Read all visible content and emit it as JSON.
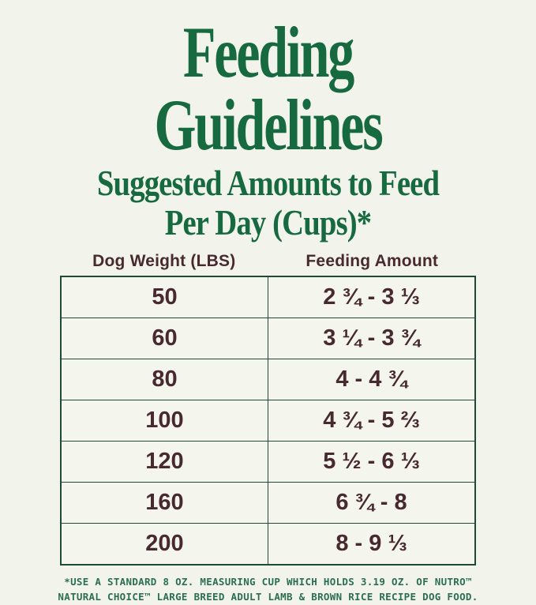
{
  "title": "Feeding Guidelines",
  "subtitle_line1": "Suggested Amounts to Feed",
  "subtitle_line2": "Per Day (Cups)*",
  "table": {
    "col1_header": "Dog Weight (LBS)",
    "col2_header": "Feeding Amount",
    "rows": [
      {
        "weight": "50",
        "amount": "2 ¾ - 3 ⅓"
      },
      {
        "weight": "60",
        "amount": "3 ¼ - 3 ¾"
      },
      {
        "weight": "80",
        "amount": "4 - 4 ¾"
      },
      {
        "weight": "100",
        "amount": "4 ¾ - 5 ⅔"
      },
      {
        "weight": "120",
        "amount": "5 ½ - 6 ⅓"
      },
      {
        "weight": "160",
        "amount": "6 ¾ - 8"
      },
      {
        "weight": "200",
        "amount": "8 - 9 ⅓"
      }
    ]
  },
  "footnote_line1": "*USE A STANDARD 8 OZ. MEASURING CUP WHICH HOLDS 3.19 OZ. OF NUTRO™",
  "footnote_line2": "NATURAL CHOICE™ LARGE BREED ADULT LAMB & BROWN RICE RECIPE DOG FOOD.",
  "colors": {
    "background": "#f2f4eb",
    "title_green": "#176a40",
    "text_brown": "#48292f",
    "border_green": "#1f4a36",
    "footnote_green": "#2c6e50"
  },
  "chart_data": {
    "type": "table",
    "title": "Feeding Guidelines",
    "subtitle": "Suggested Amounts to Feed Per Day (Cups)*",
    "columns": [
      "Dog Weight (LBS)",
      "Feeding Amount"
    ],
    "rows": [
      [
        "50",
        "2 ¾ - 3 ⅓"
      ],
      [
        "60",
        "3 ¼ - 3 ¾"
      ],
      [
        "80",
        "4 - 4 ¾"
      ],
      [
        "100",
        "4 ¾ - 5 ⅔"
      ],
      [
        "120",
        "5 ½ - 6 ⅓"
      ],
      [
        "160",
        "6 ¾ - 8"
      ],
      [
        "200",
        "8 - 9 ⅓"
      ]
    ],
    "footnote": "*USE A STANDARD 8 OZ. MEASURING CUP WHICH HOLDS 3.19 OZ. OF NUTRO™ NATURAL CHOICE™ LARGE BREED ADULT LAMB & BROWN RICE RECIPE DOG FOOD."
  }
}
